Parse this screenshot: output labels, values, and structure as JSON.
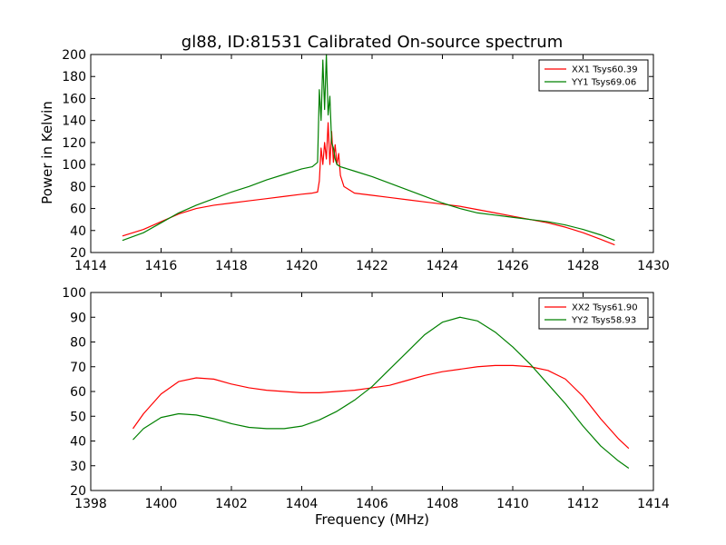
{
  "chart_data": [
    {
      "type": "line",
      "title": "gl88, ID:81531 Calibrated On-source spectrum",
      "xlabel": "",
      "ylabel": "Power in Kelvin",
      "xlim": [
        1414,
        1430
      ],
      "ylim": [
        20,
        200
      ],
      "xticks": [
        1414,
        1416,
        1418,
        1420,
        1422,
        1424,
        1426,
        1428,
        1430
      ],
      "yticks": [
        20,
        40,
        60,
        80,
        100,
        120,
        140,
        160,
        180,
        200
      ],
      "grid": false,
      "legend": "top-right",
      "series": [
        {
          "name": "XX1 Tsys60.39",
          "color": "#ff0000",
          "x": [
            1414.9,
            1415.5,
            1416.0,
            1416.5,
            1417.0,
            1417.5,
            1418.0,
            1418.5,
            1419.0,
            1419.5,
            1420.0,
            1420.3,
            1420.45,
            1420.5,
            1420.55,
            1420.6,
            1420.65,
            1420.7,
            1420.75,
            1420.8,
            1420.85,
            1420.9,
            1420.95,
            1421.0,
            1421.05,
            1421.1,
            1421.2,
            1421.5,
            1422.0,
            1422.5,
            1423.0,
            1423.5,
            1424.0,
            1424.5,
            1425.0,
            1425.5,
            1426.0,
            1426.5,
            1427.0,
            1427.5,
            1428.0,
            1428.5,
            1428.9
          ],
          "values": [
            35,
            41,
            48,
            55,
            60,
            63,
            65,
            67,
            69,
            71,
            73,
            74,
            75,
            85,
            115,
            100,
            120,
            105,
            138,
            100,
            130,
            102,
            118,
            100,
            110,
            90,
            80,
            74,
            72,
            70,
            68,
            66,
            64,
            62,
            59,
            56,
            53,
            50,
            47,
            43,
            38,
            32,
            27
          ]
        },
        {
          "name": "YY1 Tsys69.06",
          "color": "#008000",
          "x": [
            1414.9,
            1415.5,
            1416.0,
            1416.5,
            1417.0,
            1417.5,
            1418.0,
            1418.5,
            1419.0,
            1419.5,
            1420.0,
            1420.3,
            1420.45,
            1420.5,
            1420.55,
            1420.6,
            1420.65,
            1420.7,
            1420.75,
            1420.8,
            1420.85,
            1420.9,
            1420.95,
            1421.0,
            1421.05,
            1421.1,
            1421.2,
            1421.5,
            1422.0,
            1422.5,
            1423.0,
            1423.5,
            1424.0,
            1424.5,
            1425.0,
            1425.5,
            1426.0,
            1426.5,
            1427.0,
            1427.5,
            1428.0,
            1428.5,
            1428.9
          ],
          "values": [
            31,
            38,
            47,
            56,
            63,
            69,
            75,
            80,
            86,
            91,
            96,
            98,
            102,
            168,
            140,
            195,
            150,
            200,
            145,
            162,
            120,
            115,
            105,
            100,
            99,
            98,
            97,
            94,
            89,
            83,
            77,
            71,
            65,
            60,
            56,
            54,
            52,
            50,
            48,
            45,
            41,
            36,
            31
          ]
        }
      ]
    },
    {
      "type": "line",
      "title": "",
      "xlabel": "Frequency (MHz)",
      "ylabel": "",
      "xlim": [
        1398,
        1414
      ],
      "ylim": [
        20,
        100
      ],
      "xticks": [
        1398,
        1400,
        1402,
        1404,
        1406,
        1408,
        1410,
        1412,
        1414
      ],
      "yticks": [
        20,
        30,
        40,
        50,
        60,
        70,
        80,
        90,
        100
      ],
      "grid": false,
      "legend": "top-right",
      "series": [
        {
          "name": "XX2 Tsys61.90",
          "color": "#ff0000",
          "x": [
            1399.2,
            1399.5,
            1400.0,
            1400.5,
            1401.0,
            1401.5,
            1402.0,
            1402.5,
            1403.0,
            1403.5,
            1404.0,
            1404.5,
            1405.0,
            1405.5,
            1406.0,
            1406.5,
            1407.0,
            1407.5,
            1408.0,
            1408.5,
            1409.0,
            1409.5,
            1410.0,
            1410.5,
            1411.0,
            1411.5,
            1412.0,
            1412.5,
            1413.0,
            1413.3
          ],
          "values": [
            45,
            51,
            59,
            64,
            65.5,
            65,
            63,
            61.5,
            60.5,
            60,
            59.5,
            59.5,
            60,
            60.5,
            61.5,
            62.5,
            64.5,
            66.5,
            68,
            69,
            70,
            70.5,
            70.5,
            70,
            68.5,
            65,
            58,
            49,
            41,
            37
          ]
        },
        {
          "name": "YY2 Tsys58.93",
          "color": "#008000",
          "x": [
            1399.2,
            1399.5,
            1400.0,
            1400.5,
            1401.0,
            1401.5,
            1402.0,
            1402.5,
            1403.0,
            1403.5,
            1404.0,
            1404.5,
            1405.0,
            1405.5,
            1406.0,
            1406.5,
            1407.0,
            1407.5,
            1408.0,
            1408.5,
            1409.0,
            1409.5,
            1410.0,
            1410.5,
            1411.0,
            1411.5,
            1412.0,
            1412.5,
            1413.0,
            1413.3
          ],
          "values": [
            40.5,
            45,
            49.5,
            51,
            50.5,
            49,
            47,
            45.5,
            45,
            45,
            46,
            48.5,
            52,
            56.5,
            62,
            69,
            76,
            83,
            88,
            90,
            88.5,
            84,
            78,
            71,
            63,
            55,
            46,
            38,
            32,
            29
          ]
        }
      ]
    }
  ]
}
